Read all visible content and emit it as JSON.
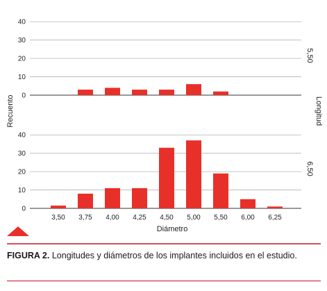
{
  "chart_data": {
    "type": "bar",
    "categories": [
      "3,50",
      "3,75",
      "4,00",
      "4,25",
      "4,50",
      "5,00",
      "5,50",
      "6,00",
      "6,25"
    ],
    "xlabel": "Diámetro",
    "ylabel": "Recuento",
    "facet_title": "Longitud",
    "yticks": [
      "0",
      "10",
      "20",
      "30",
      "40"
    ],
    "ylim": [
      0,
      45
    ],
    "bar_color": "#e8302a",
    "grid": true,
    "panels": [
      {
        "label": "5,50",
        "values": [
          0,
          3,
          4,
          3,
          3,
          6,
          2,
          0,
          0
        ]
      },
      {
        "label": "6,50",
        "values": [
          1.5,
          8,
          11,
          11,
          33,
          37,
          19,
          5,
          1
        ]
      }
    ]
  },
  "caption": {
    "label": "FIGURA 2.",
    "text": " Longitudes y diámetros de los implantes incluidos en el estudio."
  },
  "colors": {
    "accent": "#e8302a",
    "rule": "#c8102e"
  }
}
